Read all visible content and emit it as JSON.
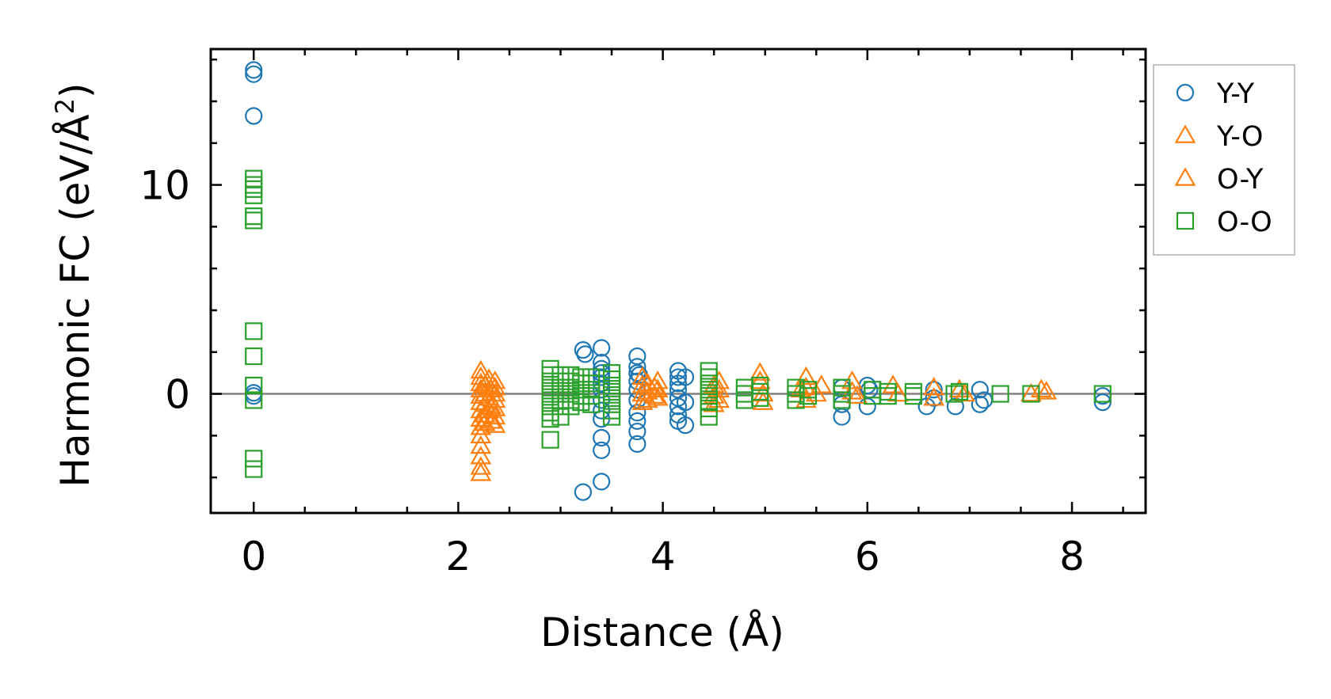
{
  "chart_data": {
    "type": "scatter",
    "title": "",
    "xlabel": "Distance (Å)",
    "ylabel_main": "Harmonic FC (eV/Å",
    "ylabel_sup": "2",
    "ylabel_close": ")",
    "xlim": [
      -0.42,
      8.72
    ],
    "ylim": [
      -5.7,
      16.5
    ],
    "x_major_ticks": [
      0,
      2,
      4,
      6,
      8
    ],
    "x_minor_step": 0.5,
    "y_major_ticks": [
      0,
      10
    ],
    "y_minor_step": 2,
    "reference_line_y": 0,
    "legend_position": "outside-right-top",
    "colors": {
      "Y-Y": "#1f77b4",
      "Y-O": "#ff7f0e",
      "O-Y": "#ff7f0e",
      "O-O": "#2ca02c"
    },
    "series": [
      {
        "name": "Y-Y",
        "marker": "circle",
        "points": [
          [
            0,
            15.5
          ],
          [
            0,
            15.3
          ],
          [
            0,
            13.3
          ],
          [
            0,
            0.05
          ],
          [
            0,
            -0.1
          ],
          [
            3.22,
            -4.7
          ],
          [
            3.22,
            2.1
          ],
          [
            3.24,
            1.9
          ],
          [
            3.4,
            -4.2
          ],
          [
            3.4,
            2.2
          ],
          [
            3.4,
            -2.1
          ],
          [
            3.4,
            -2.7
          ],
          [
            3.4,
            1.5
          ],
          [
            3.4,
            1.2
          ],
          [
            3.4,
            1.0
          ],
          [
            3.4,
            0.8
          ],
          [
            3.4,
            0.5
          ],
          [
            3.4,
            0.2
          ],
          [
            3.4,
            -0.3
          ],
          [
            3.4,
            -0.8
          ],
          [
            3.4,
            -1.2
          ],
          [
            3.75,
            1.8
          ],
          [
            3.75,
            1.3
          ],
          [
            3.75,
            1.0
          ],
          [
            3.75,
            0.6
          ],
          [
            3.75,
            0.2
          ],
          [
            3.75,
            -0.3
          ],
          [
            3.75,
            -0.9
          ],
          [
            3.75,
            -1.3
          ],
          [
            3.75,
            -1.8
          ],
          [
            3.75,
            -2.4
          ],
          [
            3.77,
            0.9
          ],
          [
            4.15,
            1.1
          ],
          [
            4.15,
            0.8
          ],
          [
            4.15,
            0.5
          ],
          [
            4.15,
            0.2
          ],
          [
            4.15,
            -0.2
          ],
          [
            4.15,
            -0.6
          ],
          [
            4.15,
            -1.0
          ],
          [
            4.15,
            -1.3
          ],
          [
            4.22,
            0.8
          ],
          [
            4.22,
            -0.4
          ],
          [
            4.22,
            -1.5
          ],
          [
            5.75,
            -1.1
          ],
          [
            5.75,
            -0.5
          ],
          [
            5.75,
            0.3
          ],
          [
            6.0,
            0.4
          ],
          [
            6.0,
            -0.6
          ],
          [
            6.02,
            0.2
          ],
          [
            6.58,
            -0.6
          ],
          [
            6.65,
            -0.2
          ],
          [
            6.65,
            0.2
          ],
          [
            6.86,
            -0.6
          ],
          [
            7.1,
            -0.5
          ],
          [
            7.1,
            0.2
          ],
          [
            7.14,
            -0.3
          ],
          [
            8.3,
            -0.4
          ],
          [
            8.3,
            -0.1
          ]
        ]
      },
      {
        "name": "Y-O",
        "marker": "triangle",
        "points": [
          [
            2.22,
            1.1
          ],
          [
            2.22,
            0.8
          ],
          [
            2.22,
            0.5
          ],
          [
            2.22,
            0.2
          ],
          [
            2.22,
            -0.1
          ],
          [
            2.22,
            -0.4
          ],
          [
            2.22,
            -0.8
          ],
          [
            2.22,
            -1.2
          ],
          [
            2.22,
            -1.6
          ],
          [
            2.22,
            -2.0
          ],
          [
            2.22,
            -2.5
          ],
          [
            2.22,
            -3.0
          ],
          [
            2.22,
            -3.5
          ],
          [
            2.22,
            -3.8
          ],
          [
            2.36,
            0.6
          ],
          [
            2.36,
            0.3
          ],
          [
            2.36,
            0.0
          ],
          [
            2.36,
            -0.3
          ],
          [
            2.36,
            -0.7
          ],
          [
            2.36,
            -1.1
          ],
          [
            2.36,
            -1.5
          ],
          [
            3.8,
            0.8
          ],
          [
            3.8,
            0.4
          ],
          [
            3.8,
            0.0
          ],
          [
            3.8,
            -0.4
          ],
          [
            3.95,
            0.6
          ],
          [
            3.95,
            0.2
          ],
          [
            3.95,
            -0.2
          ],
          [
            4.55,
            0.6
          ],
          [
            4.55,
            0.2
          ],
          [
            4.55,
            -0.3
          ],
          [
            4.95,
            1.0
          ],
          [
            4.95,
            0.6
          ],
          [
            5.4,
            0.8
          ],
          [
            5.4,
            0.3
          ],
          [
            5.4,
            -0.3
          ],
          [
            5.55,
            0.4
          ],
          [
            5.85,
            0.6
          ],
          [
            5.85,
            0.1
          ],
          [
            6.25,
            0.4
          ],
          [
            6.65,
            0.3
          ],
          [
            6.65,
            -0.2
          ],
          [
            6.9,
            0.2
          ],
          [
            7.7,
            0.2
          ],
          [
            7.75,
            0.1
          ]
        ]
      },
      {
        "name": "O-Y",
        "marker": "triangle",
        "points": [
          [
            2.26,
            0.4
          ],
          [
            2.26,
            0.0
          ],
          [
            2.26,
            -0.5
          ],
          [
            2.26,
            -1.0
          ],
          [
            2.26,
            -1.4
          ],
          [
            2.3,
            0.7
          ],
          [
            2.3,
            -0.2
          ],
          [
            2.3,
            -0.8
          ],
          [
            2.32,
            0.2
          ],
          [
            2.32,
            -0.6
          ],
          [
            2.32,
            -1.3
          ],
          [
            3.85,
            0.5
          ],
          [
            3.85,
            0.1
          ],
          [
            3.85,
            -0.3
          ],
          [
            3.92,
            0.3
          ],
          [
            3.92,
            -0.1
          ],
          [
            4.5,
            0.4
          ],
          [
            4.5,
            -0.1
          ],
          [
            4.5,
            -0.5
          ],
          [
            4.98,
            0.0
          ],
          [
            4.98,
            -0.4
          ],
          [
            5.35,
            0.2
          ],
          [
            5.5,
            0.0
          ],
          [
            5.9,
            -0.1
          ],
          [
            6.3,
            0.0
          ],
          [
            6.95,
            0.0
          ],
          [
            7.6,
            0.0
          ]
        ]
      },
      {
        "name": "O-O",
        "marker": "square",
        "points": [
          [
            0,
            10.3
          ],
          [
            0,
            10.0
          ],
          [
            0,
            9.8
          ],
          [
            0,
            9.5
          ],
          [
            0,
            8.5
          ],
          [
            0,
            8.3
          ],
          [
            0,
            3.0
          ],
          [
            0,
            1.8
          ],
          [
            0,
            0.4
          ],
          [
            0,
            -0.3
          ],
          [
            0,
            -3.1
          ],
          [
            0,
            -3.6
          ],
          [
            2.9,
            1.2
          ],
          [
            2.9,
            0.9
          ],
          [
            2.9,
            0.6
          ],
          [
            2.9,
            0.3
          ],
          [
            2.9,
            0.0
          ],
          [
            2.9,
            -0.3
          ],
          [
            2.9,
            -0.6
          ],
          [
            2.9,
            -0.9
          ],
          [
            2.9,
            -1.2
          ],
          [
            2.9,
            -2.2
          ],
          [
            3.0,
            0.9
          ],
          [
            3.0,
            0.6
          ],
          [
            3.0,
            0.3
          ],
          [
            3.0,
            0.0
          ],
          [
            3.0,
            -0.3
          ],
          [
            3.0,
            -0.6
          ],
          [
            3.0,
            -1.1
          ],
          [
            3.1,
            0.9
          ],
          [
            3.1,
            0.6
          ],
          [
            3.1,
            0.3
          ],
          [
            3.1,
            0.0
          ],
          [
            3.1,
            -0.3
          ],
          [
            3.1,
            -0.6
          ],
          [
            3.2,
            0.8
          ],
          [
            3.2,
            0.5
          ],
          [
            3.2,
            0.2
          ],
          [
            3.2,
            -0.1
          ],
          [
            3.2,
            -0.4
          ],
          [
            3.3,
            0.8
          ],
          [
            3.3,
            0.5
          ],
          [
            3.3,
            0.2
          ],
          [
            3.3,
            -0.1
          ],
          [
            3.3,
            -0.5
          ],
          [
            3.5,
            1.0
          ],
          [
            3.5,
            0.7
          ],
          [
            3.5,
            0.4
          ],
          [
            3.5,
            0.1
          ],
          [
            3.5,
            -0.2
          ],
          [
            3.5,
            -0.5
          ],
          [
            3.5,
            -0.8
          ],
          [
            3.5,
            -1.1
          ],
          [
            4.45,
            1.1
          ],
          [
            4.45,
            0.8
          ],
          [
            4.45,
            0.5
          ],
          [
            4.45,
            0.2
          ],
          [
            4.45,
            -0.1
          ],
          [
            4.45,
            -0.4
          ],
          [
            4.45,
            -0.7
          ],
          [
            4.45,
            -1.1
          ],
          [
            4.8,
            0.3
          ],
          [
            4.8,
            0.0
          ],
          [
            4.8,
            -0.3
          ],
          [
            4.95,
            0.4
          ],
          [
            4.95,
            0.1
          ],
          [
            4.95,
            -0.2
          ],
          [
            5.3,
            0.3
          ],
          [
            5.3,
            0.0
          ],
          [
            5.3,
            -0.3
          ],
          [
            5.42,
            0.2
          ],
          [
            5.42,
            -0.1
          ],
          [
            5.75,
            0.3
          ],
          [
            5.75,
            0.0
          ],
          [
            5.75,
            -0.3
          ],
          [
            6.05,
            0.2
          ],
          [
            6.05,
            -0.1
          ],
          [
            6.2,
            0.1
          ],
          [
            6.2,
            -0.1
          ],
          [
            6.45,
            0.1
          ],
          [
            6.45,
            -0.1
          ],
          [
            6.85,
            0.0
          ],
          [
            6.9,
            0.1
          ],
          [
            7.3,
            0.0
          ],
          [
            7.6,
            0.0
          ],
          [
            8.3,
            0.0
          ]
        ]
      }
    ]
  }
}
